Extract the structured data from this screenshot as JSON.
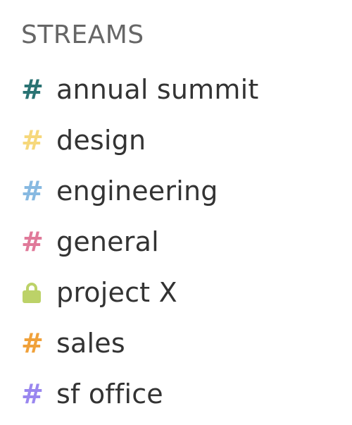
{
  "sidebar": {
    "header": "STREAMS",
    "streams": [
      {
        "name": "annual summit",
        "icon": "hash-icon",
        "color": "#2a7373"
      },
      {
        "name": "design",
        "icon": "hash-icon",
        "color": "#f6d87b"
      },
      {
        "name": "engineering",
        "icon": "hash-icon",
        "color": "#87b9e1"
      },
      {
        "name": "general",
        "icon": "hash-icon",
        "color": "#e07a9a"
      },
      {
        "name": "project X",
        "icon": "lock-icon",
        "color": "#bcd268"
      },
      {
        "name": "sales",
        "icon": "hash-icon",
        "color": "#f0a13a"
      },
      {
        "name": "sf office",
        "icon": "hash-icon",
        "color": "#9a87ef"
      }
    ]
  }
}
